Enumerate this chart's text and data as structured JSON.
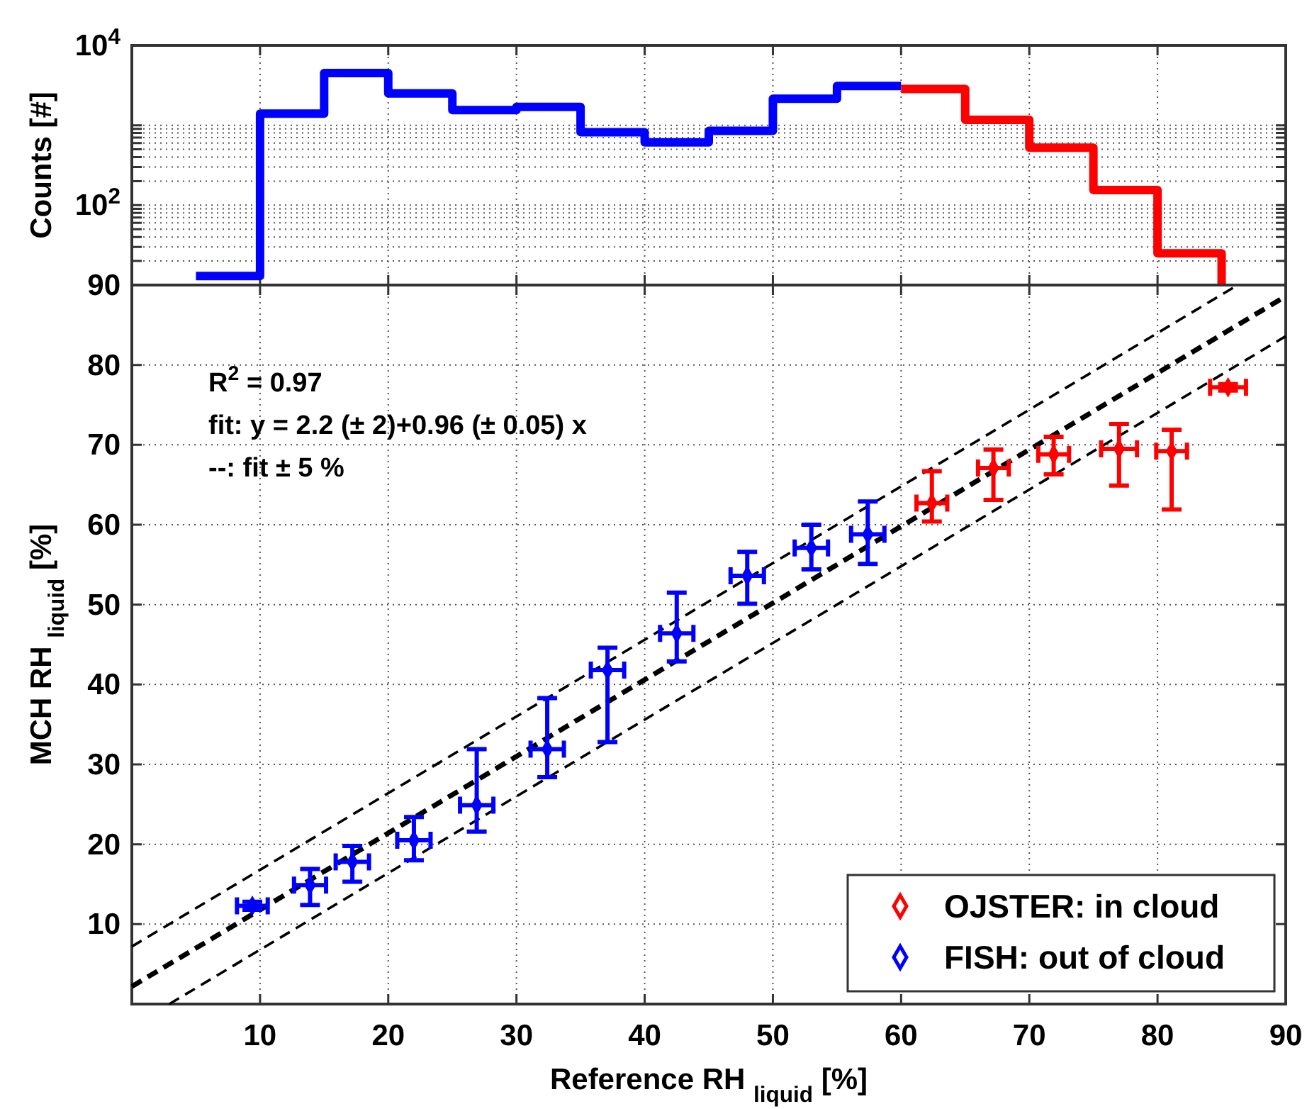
{
  "chart_data": [
    {
      "type": "step",
      "ylabel": "Counts [#]",
      "log": "y",
      "grid": true,
      "tick_labels": "y",
      "xlim": [
        0,
        90
      ],
      "xticks": [
        10,
        20,
        30,
        40,
        50,
        60,
        70,
        80,
        90
      ],
      "ylim": [
        10,
        10000
      ],
      "yticks": [
        {
          "value": 10,
          "label": null
        },
        {
          "value": 20,
          "label": null
        },
        {
          "value": 30,
          "label": null
        },
        {
          "value": 40,
          "label": null
        },
        {
          "value": 50,
          "label": null
        },
        {
          "value": 60,
          "label": null
        },
        {
          "value": 70,
          "label": null
        },
        {
          "value": 80,
          "label": null
        },
        {
          "value": 90,
          "label": null
        },
        {
          "value": 100,
          "label": "10$^{2}$"
        },
        {
          "value": 200,
          "label": null
        },
        {
          "value": 300,
          "label": null
        },
        {
          "value": 400,
          "label": null
        },
        {
          "value": 500,
          "label": null
        },
        {
          "value": 600,
          "label": null
        },
        {
          "value": 700,
          "label": null
        },
        {
          "value": 800,
          "label": null
        },
        {
          "value": 900,
          "label": null
        },
        {
          "value": 1000,
          "label": null
        },
        {
          "value": 10000,
          "label": "10$^{4}$"
        }
      ],
      "series": [
        {
          "color": "#0000ff",
          "x": [
            5,
            10,
            15,
            20,
            25,
            30,
            35,
            40,
            45,
            50,
            55,
            60
          ],
          "values": [
            13,
            1400,
            4500,
            2500,
            1550,
            1700,
            820,
            610,
            850,
            2150,
            3100,
            3100
          ]
        },
        {
          "color": "#ff0000",
          "x": [
            60,
            65,
            70,
            75,
            80,
            85
          ],
          "values": [
            2850,
            1170,
            525,
            155,
            25,
            10
          ]
        }
      ]
    },
    {
      "type": "scatter",
      "xlabel": "Reference RH $_{liquid}$ [%]",
      "ylabel": "MCH RH $_{liquid}$ [%]",
      "grid": true,
      "legend": "bottom right",
      "marker": "diamond",
      "xlim": [
        0,
        90
      ],
      "xticks": [
        10,
        20,
        30,
        40,
        50,
        60,
        70,
        80,
        90
      ],
      "ylim": [
        0,
        90
      ],
      "yticks": [
        10,
        20,
        30,
        40,
        50,
        60,
        70,
        80,
        90
      ],
      "annotations": [
        "R$^{2}$ = 0.97",
        "fit: y = 2.2 (± 2)+0.96 (± 0.05) x",
        "--: fit ± 5 %"
      ],
      "series": [
        {
          "name": "OJSTER: in cloud",
          "color": "#ff0000",
          "x": [
            62.4,
            67.2,
            71.9,
            77.0,
            81.1,
            85.5
          ],
          "values": [
            62.7,
            67.1,
            68.8,
            69.5,
            69.2,
            77.2
          ],
          "errors": [
            [
              60.4,
              66.7
            ],
            [
              63.1,
              69.4
            ],
            [
              66.3,
              71.0
            ],
            [
              64.9,
              72.6
            ],
            [
              61.9,
              71.9
            ],
            [
              76.8,
              77.6
            ]
          ],
          "xerrors": [
            1.2,
            1.2,
            1.2,
            1.4,
            1.2,
            1.4
          ]
        },
        {
          "name": "FISH: out of cloud",
          "color": "#0000ff",
          "x": [
            9.4,
            13.9,
            17.2,
            22.0,
            26.9,
            32.4,
            37.1,
            42.5,
            48.0,
            53.0,
            57.4
          ],
          "values": [
            12.3,
            14.9,
            17.8,
            20.5,
            24.9,
            31.9,
            41.8,
            46.4,
            53.6,
            57.1,
            58.8
          ],
          "errors": [
            [
              11.8,
              12.8
            ],
            [
              12.4,
              16.9
            ],
            [
              15.3,
              19.8
            ],
            [
              18.0,
              23.4
            ],
            [
              21.6,
              31.9
            ],
            [
              28.4,
              38.3
            ],
            [
              32.8,
              44.6
            ],
            [
              42.9,
              51.5
            ],
            [
              50.1,
              56.6
            ],
            [
              54.4,
              60.0
            ],
            [
              55.1,
              62.9
            ]
          ],
          "xerrors": [
            1.2,
            1.25,
            1.3,
            1.3,
            1.3,
            1.3,
            1.3,
            1.3,
            1.3,
            1.3,
            1.3
          ]
        },
        {
          "type": "line",
          "color": "#000000",
          "line_style": "dashed",
          "marker": "none",
          "x": [
            0,
            90
          ],
          "values": [
            2.2,
            88.6
          ]
        },
        {
          "type": "line",
          "color": "#000000",
          "line_style": "dashed",
          "marker": "none",
          "x": [
            0,
            86.25
          ],
          "values": [
            7.2,
            90
          ]
        },
        {
          "type": "line",
          "color": "#000000",
          "line_style": "dashed",
          "marker": "none",
          "x": [
            2.92,
            90
          ],
          "values": [
            0,
            83.6
          ]
        }
      ]
    }
  ]
}
